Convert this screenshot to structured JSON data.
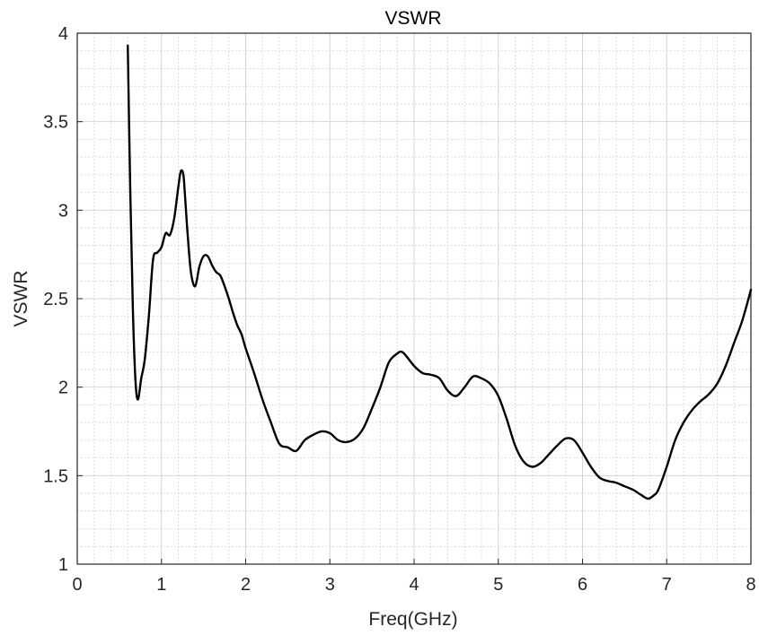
{
  "chart_data": {
    "type": "line",
    "title": "VSWR",
    "xlabel": "Freq(GHz)",
    "ylabel": "VSWR",
    "xlim": [
      0,
      8
    ],
    "ylim": [
      1,
      4
    ],
    "xticks": [
      0,
      1,
      2,
      3,
      4,
      5,
      6,
      7,
      8
    ],
    "xtick_labels": [
      "0",
      "1",
      "2",
      "3",
      "4",
      "5",
      "6",
      "7",
      "8"
    ],
    "yticks": [
      1,
      1.5,
      2,
      2.5,
      3,
      3.5,
      4
    ],
    "ytick_labels": [
      "1",
      "1.5",
      "2",
      "2.5",
      "3",
      "3.5",
      "4"
    ],
    "grid": true,
    "minor_grid": true,
    "series": [
      {
        "color": "#000000",
        "x": [
          0.6,
          0.63,
          0.66,
          0.69,
          0.72,
          0.76,
          0.8,
          0.85,
          0.9,
          0.95,
          1.0,
          1.05,
          1.1,
          1.15,
          1.2,
          1.23,
          1.26,
          1.28,
          1.31,
          1.35,
          1.4,
          1.45,
          1.5,
          1.55,
          1.6,
          1.65,
          1.7,
          1.75,
          1.8,
          1.85,
          1.9,
          1.95,
          2.0,
          2.1,
          2.2,
          2.3,
          2.4,
          2.5,
          2.6,
          2.7,
          2.8,
          2.9,
          3.0,
          3.1,
          3.2,
          3.3,
          3.4,
          3.5,
          3.6,
          3.7,
          3.8,
          3.85,
          3.9,
          4.0,
          4.1,
          4.2,
          4.3,
          4.4,
          4.5,
          4.6,
          4.7,
          4.8,
          4.9,
          5.0,
          5.1,
          5.2,
          5.3,
          5.4,
          5.5,
          5.6,
          5.7,
          5.8,
          5.9,
          6.0,
          6.1,
          6.2,
          6.3,
          6.4,
          6.5,
          6.6,
          6.7,
          6.78,
          6.85,
          6.9,
          7.0,
          7.1,
          7.2,
          7.3,
          7.4,
          7.5,
          7.6,
          7.7,
          7.8,
          7.9,
          8.0
        ],
        "y": [
          3.93,
          3.1,
          2.45,
          2.05,
          1.93,
          2.05,
          2.15,
          2.4,
          2.72,
          2.76,
          2.79,
          2.87,
          2.86,
          2.95,
          3.13,
          3.22,
          3.2,
          3.08,
          2.87,
          2.65,
          2.57,
          2.68,
          2.74,
          2.74,
          2.69,
          2.65,
          2.63,
          2.57,
          2.5,
          2.42,
          2.35,
          2.3,
          2.22,
          2.08,
          1.93,
          1.8,
          1.68,
          1.66,
          1.64,
          1.7,
          1.73,
          1.75,
          1.74,
          1.7,
          1.69,
          1.71,
          1.77,
          1.88,
          2.0,
          2.14,
          2.19,
          2.2,
          2.18,
          2.12,
          2.08,
          2.07,
          2.05,
          1.98,
          1.95,
          2.0,
          2.06,
          2.05,
          2.02,
          1.95,
          1.82,
          1.67,
          1.58,
          1.55,
          1.57,
          1.62,
          1.67,
          1.71,
          1.7,
          1.63,
          1.55,
          1.49,
          1.47,
          1.46,
          1.44,
          1.42,
          1.39,
          1.37,
          1.39,
          1.42,
          1.55,
          1.7,
          1.8,
          1.87,
          1.92,
          1.96,
          2.02,
          2.12,
          2.25,
          2.38,
          2.55
        ]
      }
    ]
  }
}
